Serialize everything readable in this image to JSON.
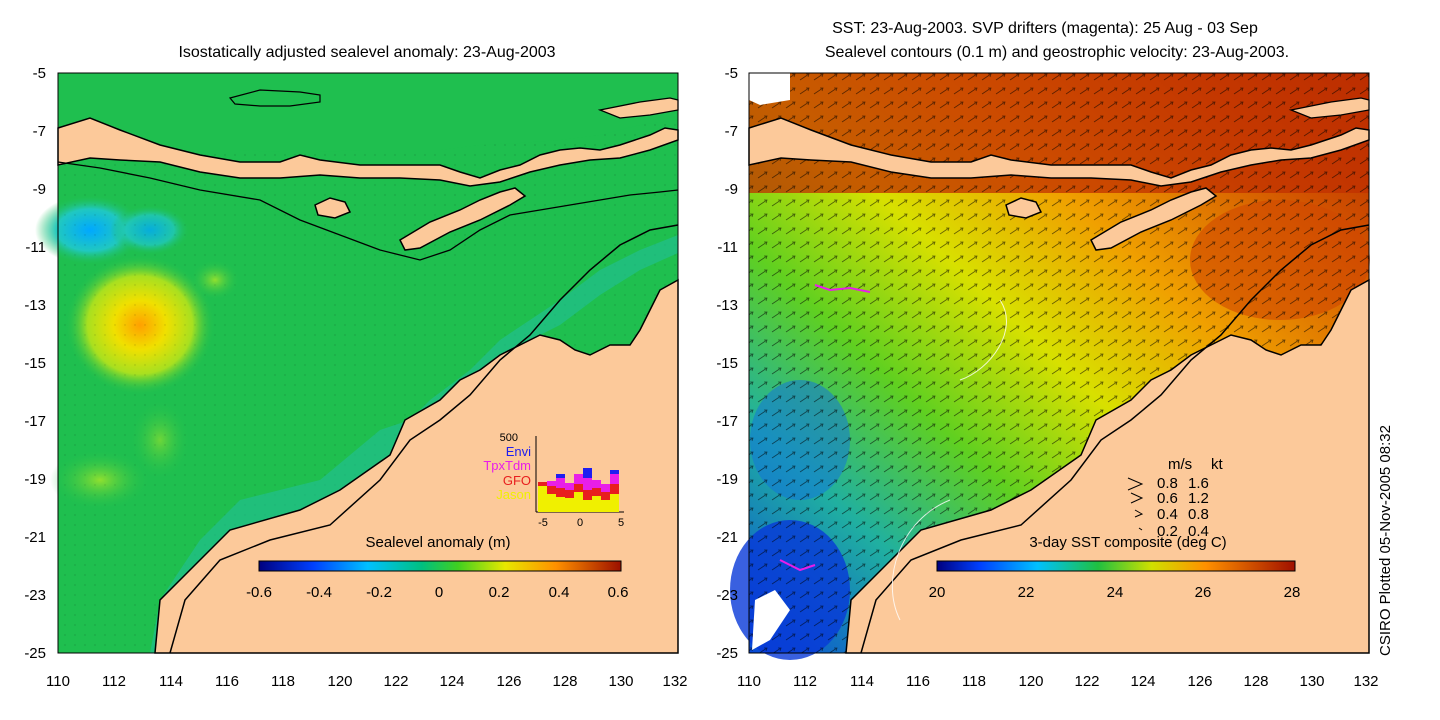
{
  "left_panel": {
    "title": "Isostatically adjusted sealevel anomaly: 23-Aug-2003",
    "colorbar_label": "Sealevel anomaly (m)",
    "colorbar_ticks": [
      "-0.6",
      "-0.4",
      "-0.2",
      "0",
      "0.2",
      "0.4",
      "0.6"
    ],
    "inset": {
      "ymax_label": "500",
      "xticks": [
        "-5",
        "0",
        "5"
      ],
      "legend": [
        {
          "name": "Envi",
          "color": "#1e1ef0"
        },
        {
          "name": "TpxTdm",
          "color": "#e81ee8"
        },
        {
          "name": "GFO",
          "color": "#e81e1e"
        },
        {
          "name": "Jason",
          "color": "#f0f000"
        }
      ]
    }
  },
  "right_panel": {
    "title_line1": "SST: 23-Aug-2003. SVP drifters (magenta): 25 Aug - 03 Sep",
    "title_line2": "Sealevel contours (0.1 m) and geostrophic velocity: 23-Aug-2003.",
    "colorbar_label": "3-day SST composite (deg C)",
    "colorbar_ticks": [
      "20",
      "22",
      "24",
      "26",
      "28"
    ],
    "speed_legend": {
      "header_ms": "m/s",
      "header_kt": "kt",
      "rows": [
        {
          "ms": "0.8",
          "kt": "1.6"
        },
        {
          "ms": "0.6",
          "kt": "1.2"
        },
        {
          "ms": "0.4",
          "kt": "0.8"
        },
        {
          "ms": "0.2",
          "kt": "0.4"
        }
      ]
    }
  },
  "axes": {
    "lat_ticks": [
      "-5",
      "-7",
      "-9",
      "-11",
      "-13",
      "-15",
      "-17",
      "-19",
      "-21",
      "-23",
      "-25"
    ],
    "lon_ticks": [
      "110",
      "112",
      "114",
      "116",
      "118",
      "120",
      "122",
      "124",
      "126",
      "128",
      "130",
      "132"
    ]
  },
  "side_caption": "CSIRO Plotted 05-Nov-2005 08:32",
  "colors": {
    "land": "#fcc99a",
    "ocean_left": "#1fbf4f",
    "ocean_right_shelf": "#f08a00",
    "coast": "#000000"
  }
}
